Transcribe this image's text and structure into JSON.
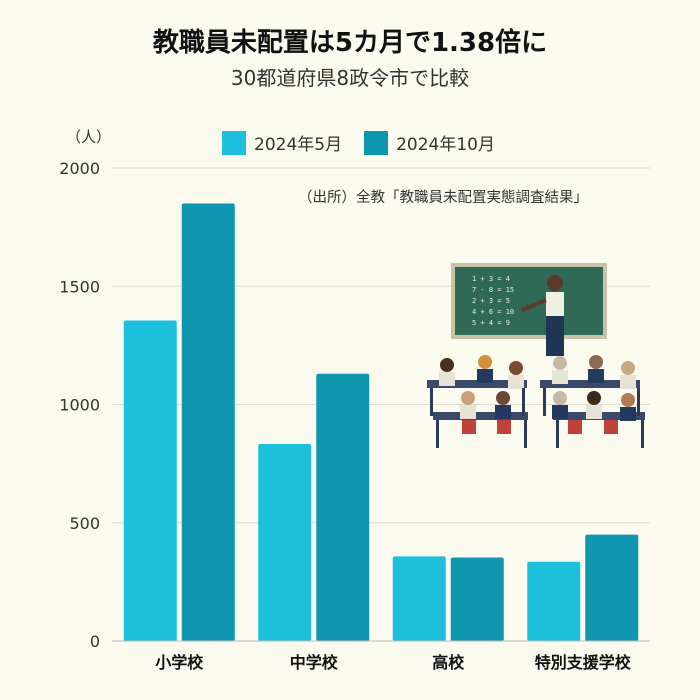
{
  "header": {
    "title": "教職員未配置は5カ月で1.38倍に",
    "subtitle": "30都道府県8政令市で比較"
  },
  "unit_label": "（人）",
  "source": "（出所）全教「教職員未配置実態調査結果」",
  "colors": {
    "series_may": "#1cc0dd",
    "series_oct": "#0e97af",
    "grid": "#dcdcd0",
    "background": "#fbfaee"
  },
  "illustration": {
    "icon": "classroom-teacher-students-illustration",
    "board_lines": [
      "1 + 3 = 4",
      "7 - 8 = 15",
      "2 + 3 = 5",
      "4 + 6 = 10",
      "5 + 4 = 9"
    ]
  },
  "chart_data": {
    "type": "bar",
    "title": "教職員未配置は5カ月で1.38倍に",
    "subtitle": "30都道府県8政令市で比較",
    "ylabel": "（人）",
    "ylim": [
      0,
      2000
    ],
    "yticks": [
      0,
      500,
      1000,
      1500,
      2000
    ],
    "grid": true,
    "legend_position": "top-center",
    "categories": [
      "小学校",
      "中学校",
      "高校",
      "特別支援学校"
    ],
    "series": [
      {
        "name": "2024年5月",
        "values": [
          1355,
          833,
          358,
          335
        ]
      },
      {
        "name": "2024年10月",
        "values": [
          1850,
          1130,
          353,
          450
        ]
      }
    ]
  }
}
